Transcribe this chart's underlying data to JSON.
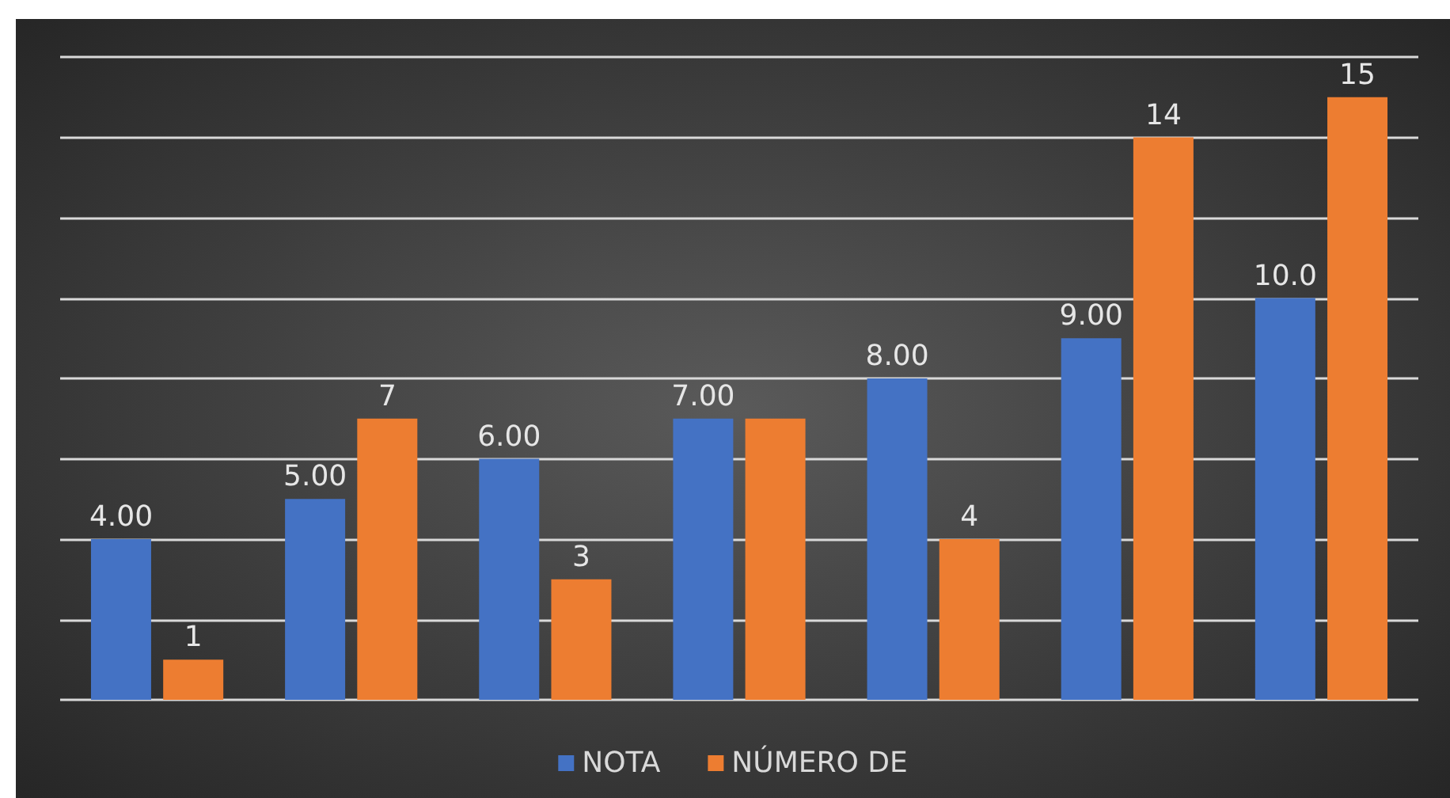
{
  "chart_data": {
    "type": "bar",
    "categories": [
      null,
      null,
      null,
      null,
      null,
      null,
      null
    ],
    "series": [
      {
        "name": "NOTA",
        "color": "#4472c4",
        "values": [
          4,
          5,
          6,
          7,
          8,
          9,
          10
        ],
        "value_labels": [
          "4.00",
          "5.00",
          "6.00",
          "7.00",
          "8.00",
          "9.00",
          "10.0"
        ]
      },
      {
        "name": "NÚMERO DE",
        "color": "#ed7d31",
        "values": [
          1,
          7,
          3,
          7,
          4,
          14,
          15
        ],
        "value_labels": [
          "1",
          "7",
          "3",
          null,
          "4",
          "14",
          "15"
        ]
      }
    ],
    "ylim": [
      0,
      16
    ],
    "yticks": [
      {
        "value": 0,
        "label": null
      },
      {
        "value": 2,
        "label": null
      },
      {
        "value": 4,
        "label": null
      },
      {
        "value": 6,
        "label": null
      },
      {
        "value": 8,
        "label": null
      },
      {
        "value": 10,
        "label": null
      },
      {
        "value": 12,
        "label": null
      },
      {
        "value": 14,
        "label": null
      },
      {
        "value": 16,
        "label": null
      }
    ],
    "grid": "y",
    "legend": "bottom"
  }
}
